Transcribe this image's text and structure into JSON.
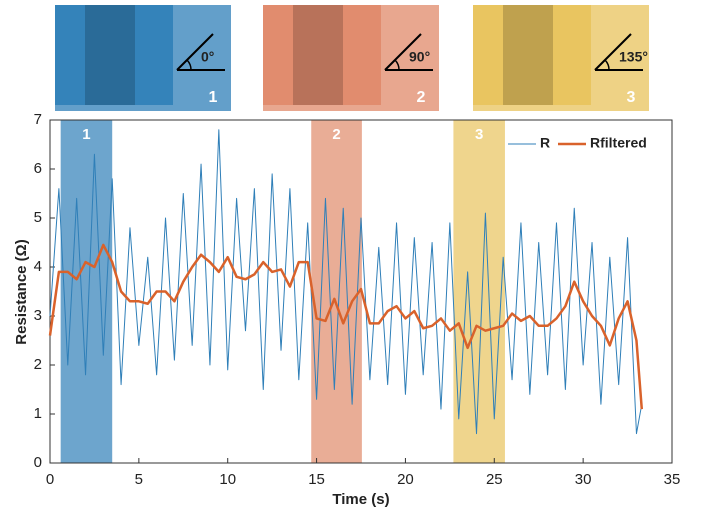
{
  "chart_data": {
    "type": "line",
    "xlabel": "Time (s)",
    "ylabel": "Resistance (Ω)",
    "xlim": [
      0,
      35
    ],
    "xticks": [
      0,
      5,
      10,
      15,
      20,
      25,
      30,
      35
    ],
    "ylim": [
      0,
      7
    ],
    "yticks": [
      0,
      1,
      2,
      3,
      4,
      5,
      6,
      7
    ],
    "legend": "upper right",
    "x": [
      0,
      0.5,
      1,
      1.5,
      2,
      2.5,
      3,
      3.5,
      4,
      4.5,
      5,
      5.5,
      6,
      6.5,
      7,
      7.5,
      8,
      8.5,
      9,
      9.5,
      10,
      10.5,
      11,
      11.5,
      12,
      12.5,
      13,
      13.5,
      14,
      14.5,
      15,
      15.5,
      16,
      16.5,
      17,
      17.5,
      18,
      18.5,
      19,
      19.5,
      20,
      20.5,
      21,
      21.5,
      22,
      22.5,
      23,
      23.5,
      24,
      24.5,
      25,
      25.5,
      26,
      26.5,
      27,
      27.5,
      28,
      28.5,
      29,
      29.5,
      30,
      30.5,
      31,
      31.5,
      32,
      32.5,
      33,
      33.3
    ],
    "series": [
      {
        "name": "R",
        "color": "#2f7fb8",
        "width": 1,
        "values": [
          3.0,
          5.6,
          2.0,
          5.4,
          1.8,
          6.3,
          2.2,
          5.8,
          1.6,
          4.8,
          2.4,
          4.2,
          1.8,
          5.0,
          2.1,
          5.5,
          2.4,
          6.1,
          2.0,
          6.8,
          1.9,
          5.4,
          2.7,
          5.6,
          1.5,
          5.9,
          2.3,
          5.6,
          1.7,
          4.9,
          1.3,
          5.4,
          1.5,
          5.2,
          1.2,
          5.0,
          1.7,
          4.4,
          1.6,
          4.9,
          1.4,
          4.6,
          1.8,
          4.5,
          1.1,
          4.9,
          0.9,
          3.9,
          0.6,
          5.1,
          0.9,
          4.2,
          1.7,
          4.9,
          1.4,
          4.5,
          1.8,
          4.9,
          1.5,
          5.2,
          2.0,
          4.5,
          1.2,
          4.2,
          1.6,
          4.6,
          0.6,
          1.2
        ]
      },
      {
        "name": "Rfiltered",
        "color": "#d9622b",
        "width": 2.5,
        "values": [
          2.6,
          3.9,
          3.9,
          3.75,
          4.1,
          4.0,
          4.45,
          4.1,
          3.5,
          3.3,
          3.3,
          3.25,
          3.5,
          3.5,
          3.3,
          3.7,
          4.0,
          4.25,
          4.1,
          3.9,
          4.2,
          3.8,
          3.75,
          3.85,
          4.1,
          3.9,
          3.95,
          3.6,
          4.1,
          4.1,
          2.95,
          2.9,
          3.35,
          2.85,
          3.3,
          3.55,
          2.85,
          2.85,
          3.1,
          3.2,
          2.95,
          3.1,
          2.75,
          2.8,
          2.95,
          2.7,
          2.85,
          2.35,
          2.8,
          2.7,
          2.75,
          2.8,
          3.05,
          2.9,
          3.0,
          2.8,
          2.8,
          2.95,
          3.2,
          3.7,
          3.3,
          3.0,
          2.8,
          2.4,
          2.95,
          3.3,
          2.5,
          1.1
        ]
      }
    ],
    "bands": [
      {
        "label": "1",
        "start": 0.6,
        "end": 3.5,
        "color": "#2f7fb8",
        "angle": "0°"
      },
      {
        "label": "2",
        "start": 14.7,
        "end": 17.55,
        "color": "#e08a6a",
        "angle": "90°"
      },
      {
        "label": "3",
        "start": 22.7,
        "end": 25.6,
        "color": "#e8c35c",
        "angle": "135°"
      }
    ]
  }
}
